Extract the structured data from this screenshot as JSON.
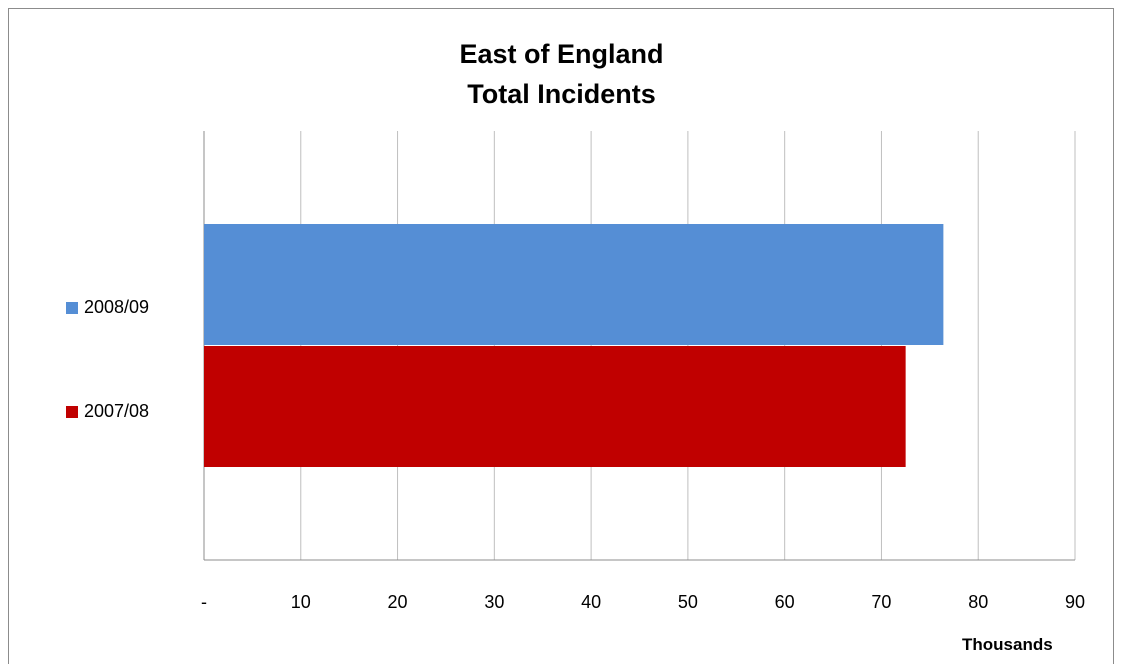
{
  "chart_data": {
    "type": "bar",
    "orientation": "horizontal",
    "title": [
      "East of England",
      "Total Incidents"
    ],
    "categories": [
      "2008/09",
      "2007/08"
    ],
    "values": [
      76.4,
      72.5
    ],
    "colors": [
      "#558ed5",
      "#c00000"
    ],
    "xlabel": "Thousands",
    "xlim": [
      0,
      90
    ],
    "xticks": [
      0,
      10,
      20,
      30,
      40,
      50,
      60,
      70,
      80,
      90
    ],
    "xtick_labels": [
      "-",
      "10",
      "20",
      "30",
      "40",
      "50",
      "60",
      "70",
      "80",
      "90"
    ],
    "grid": true,
    "legend": [
      {
        "label": "2008/09",
        "color": "#558ed5"
      },
      {
        "label": "2007/08",
        "color": "#c00000"
      }
    ]
  }
}
